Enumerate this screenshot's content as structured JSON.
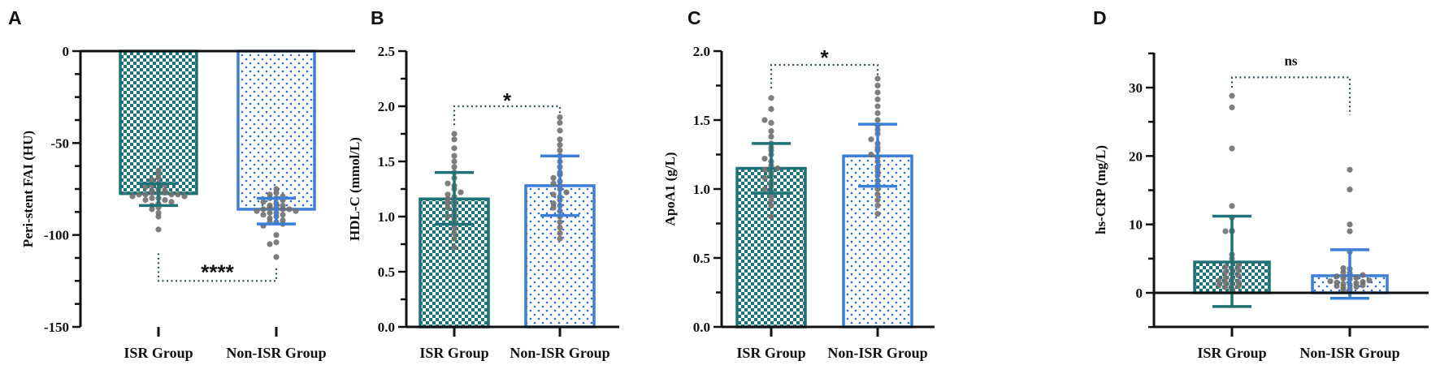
{
  "chart_data": [
    {
      "type": "bar",
      "panel": "A",
      "ylabel": "Peri-stent FAI (HU)",
      "ylim": [
        -150,
        0
      ],
      "yticks": [
        "0",
        "-50",
        "-100",
        "-150"
      ],
      "categories": [
        "ISR Group",
        "Non-ISR Group"
      ],
      "means": [
        -77.5,
        -86
      ],
      "sd_low": [
        -84,
        -94
      ],
      "sd_high": [
        -72,
        -80
      ],
      "significance": "****",
      "points": [
        [
          -65,
          -67,
          -69,
          -70,
          -72,
          -73,
          -73,
          -74,
          -75,
          -76,
          -76,
          -77,
          -77,
          -77,
          -78,
          -78,
          -78,
          -78,
          -79,
          -79,
          -80,
          -80,
          -81,
          -81,
          -82,
          -83,
          -84,
          -85,
          -86,
          -88,
          -90,
          -97
        ],
        [
          -75,
          -77,
          -78,
          -79,
          -80,
          -80,
          -81,
          -82,
          -83,
          -84,
          -84,
          -85,
          -85,
          -86,
          -86,
          -86,
          -87,
          -87,
          -88,
          -88,
          -89,
          -89,
          -90,
          -91,
          -92,
          -93,
          -93,
          -94,
          -95,
          -100,
          -104,
          -105,
          -112
        ]
      ]
    },
    {
      "type": "bar",
      "panel": "B",
      "ylabel": "HDL-C (mmol/L)",
      "ylim": [
        0,
        2.5
      ],
      "yticks": [
        "0.0",
        "0.5",
        "1.0",
        "1.5",
        "2.0",
        "2.5"
      ],
      "categories": [
        "ISR Group",
        "Non-ISR Group"
      ],
      "means": [
        1.16,
        1.28
      ],
      "sd_low": [
        0.93,
        1.01
      ],
      "sd_high": [
        1.4,
        1.55
      ],
      "significance": "*",
      "points": [
        [
          0.72,
          0.8,
          0.85,
          0.9,
          0.95,
          0.98,
          1.0,
          1.02,
          1.05,
          1.08,
          1.1,
          1.12,
          1.14,
          1.16,
          1.18,
          1.2,
          1.22,
          1.25,
          1.28,
          1.3,
          1.35,
          1.4,
          1.45,
          1.5,
          1.55,
          1.62,
          1.7,
          1.75
        ],
        [
          0.8,
          0.85,
          0.9,
          0.95,
          1.0,
          1.05,
          1.08,
          1.1,
          1.12,
          1.15,
          1.18,
          1.2,
          1.22,
          1.25,
          1.28,
          1.3,
          1.32,
          1.35,
          1.38,
          1.4,
          1.45,
          1.5,
          1.55,
          1.6,
          1.65,
          1.7,
          1.78,
          1.85,
          1.9
        ]
      ]
    },
    {
      "type": "bar",
      "panel": "C",
      "ylabel": "ApoA1 (g/L)",
      "ylim": [
        0,
        2.0
      ],
      "yticks": [
        "0.0",
        "0.5",
        "1.0",
        "1.5",
        "2.0"
      ],
      "categories": [
        "ISR Group",
        "Non-ISR Group"
      ],
      "means": [
        1.15,
        1.24
      ],
      "sd_low": [
        0.97,
        1.02
      ],
      "sd_high": [
        1.33,
        1.47
      ],
      "significance": "*",
      "points": [
        [
          0.8,
          0.88,
          0.92,
          0.95,
          0.98,
          1.0,
          1.02,
          1.05,
          1.08,
          1.1,
          1.12,
          1.14,
          1.15,
          1.17,
          1.2,
          1.22,
          1.25,
          1.28,
          1.3,
          1.33,
          1.38,
          1.42,
          1.48,
          1.5,
          1.58,
          1.66
        ],
        [
          0.82,
          0.88,
          0.92,
          0.96,
          1.0,
          1.03,
          1.06,
          1.1,
          1.13,
          1.16,
          1.2,
          1.23,
          1.25,
          1.28,
          1.3,
          1.33,
          1.36,
          1.4,
          1.43,
          1.46,
          1.5,
          1.55,
          1.6,
          1.65,
          1.7,
          1.75,
          1.8
        ]
      ]
    },
    {
      "type": "bar",
      "panel": "D",
      "ylabel": "hs-CRP (mg/L)",
      "ylim": [
        -5,
        35
      ],
      "yticks": [
        "0",
        "10",
        "20",
        "30"
      ],
      "categories": [
        "ISR Group",
        "Non-ISR Group"
      ],
      "means": [
        4.5,
        2.5
      ],
      "sd_low": [
        -2.0,
        -0.8
      ],
      "sd_high": [
        11.2,
        6.3
      ],
      "significance": "ns",
      "points": [
        [
          0.4,
          0.6,
          0.8,
          1.0,
          1.1,
          1.3,
          1.5,
          1.6,
          1.8,
          2.0,
          2.2,
          2.5,
          2.8,
          3.0,
          3.3,
          3.5,
          3.8,
          4.0,
          5.0,
          5.6,
          9.0,
          9.0,
          9.1,
          11.0,
          12.7,
          21.1,
          27.1,
          28.8
        ],
        [
          0.2,
          0.4,
          0.6,
          0.8,
          0.9,
          1.0,
          1.1,
          1.2,
          1.3,
          1.4,
          1.5,
          1.6,
          1.7,
          1.8,
          2.0,
          2.1,
          2.2,
          2.4,
          2.6,
          2.9,
          3.0,
          3.5,
          3.6,
          6.0,
          9.0,
          10.0,
          15.1,
          18.0
        ]
      ]
    }
  ],
  "colors": {
    "isr": "#1f7276",
    "non_isr": "#3b7fd9",
    "dots": "#707070",
    "axis": "#111111"
  }
}
